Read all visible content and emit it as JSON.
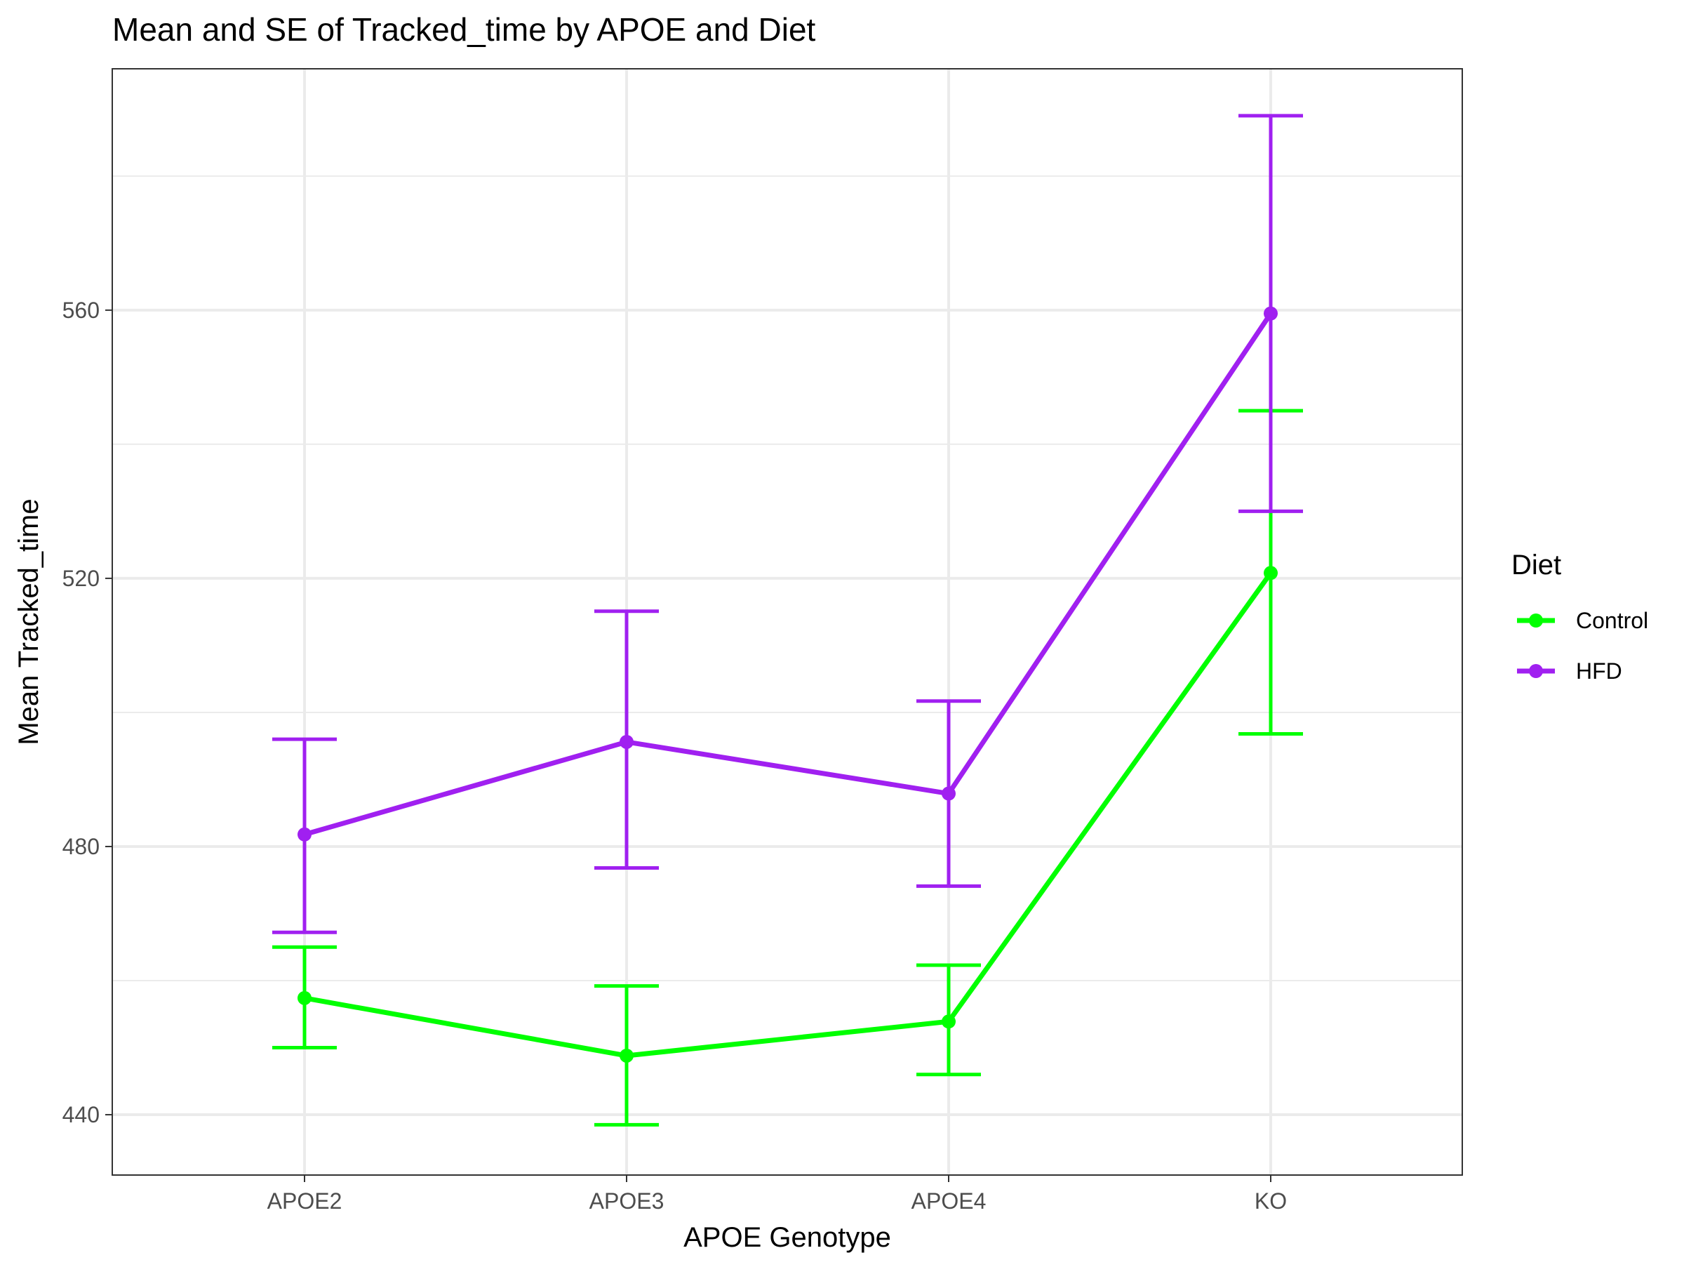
{
  "chart_data": {
    "type": "line",
    "title": "Mean and SE of Tracked_time by APOE and Diet",
    "xlabel": "APOE Genotype",
    "ylabel": "Mean Tracked_time",
    "categories": [
      "APOE2",
      "APOE3",
      "APOE4",
      "KO"
    ],
    "ylim": [
      431,
      596
    ],
    "yticks": [
      440,
      480,
      520,
      560
    ],
    "grid": true,
    "legend": {
      "title": "Diet",
      "position": "right"
    },
    "series": [
      {
        "name": "Control",
        "color": "#00ff00",
        "values": [
          457.4,
          448.8,
          453.9,
          520.8
        ],
        "se_low": [
          450.0,
          438.5,
          446.0,
          496.8
        ],
        "se_high": [
          465.0,
          459.2,
          462.3,
          545.0
        ]
      },
      {
        "name": "HFD",
        "color": "#a020f0",
        "values": [
          481.8,
          495.6,
          487.9,
          559.5
        ],
        "se_low": [
          467.2,
          476.8,
          474.1,
          530.0
        ],
        "se_high": [
          496.0,
          515.1,
          501.7,
          589.0
        ]
      }
    ]
  }
}
